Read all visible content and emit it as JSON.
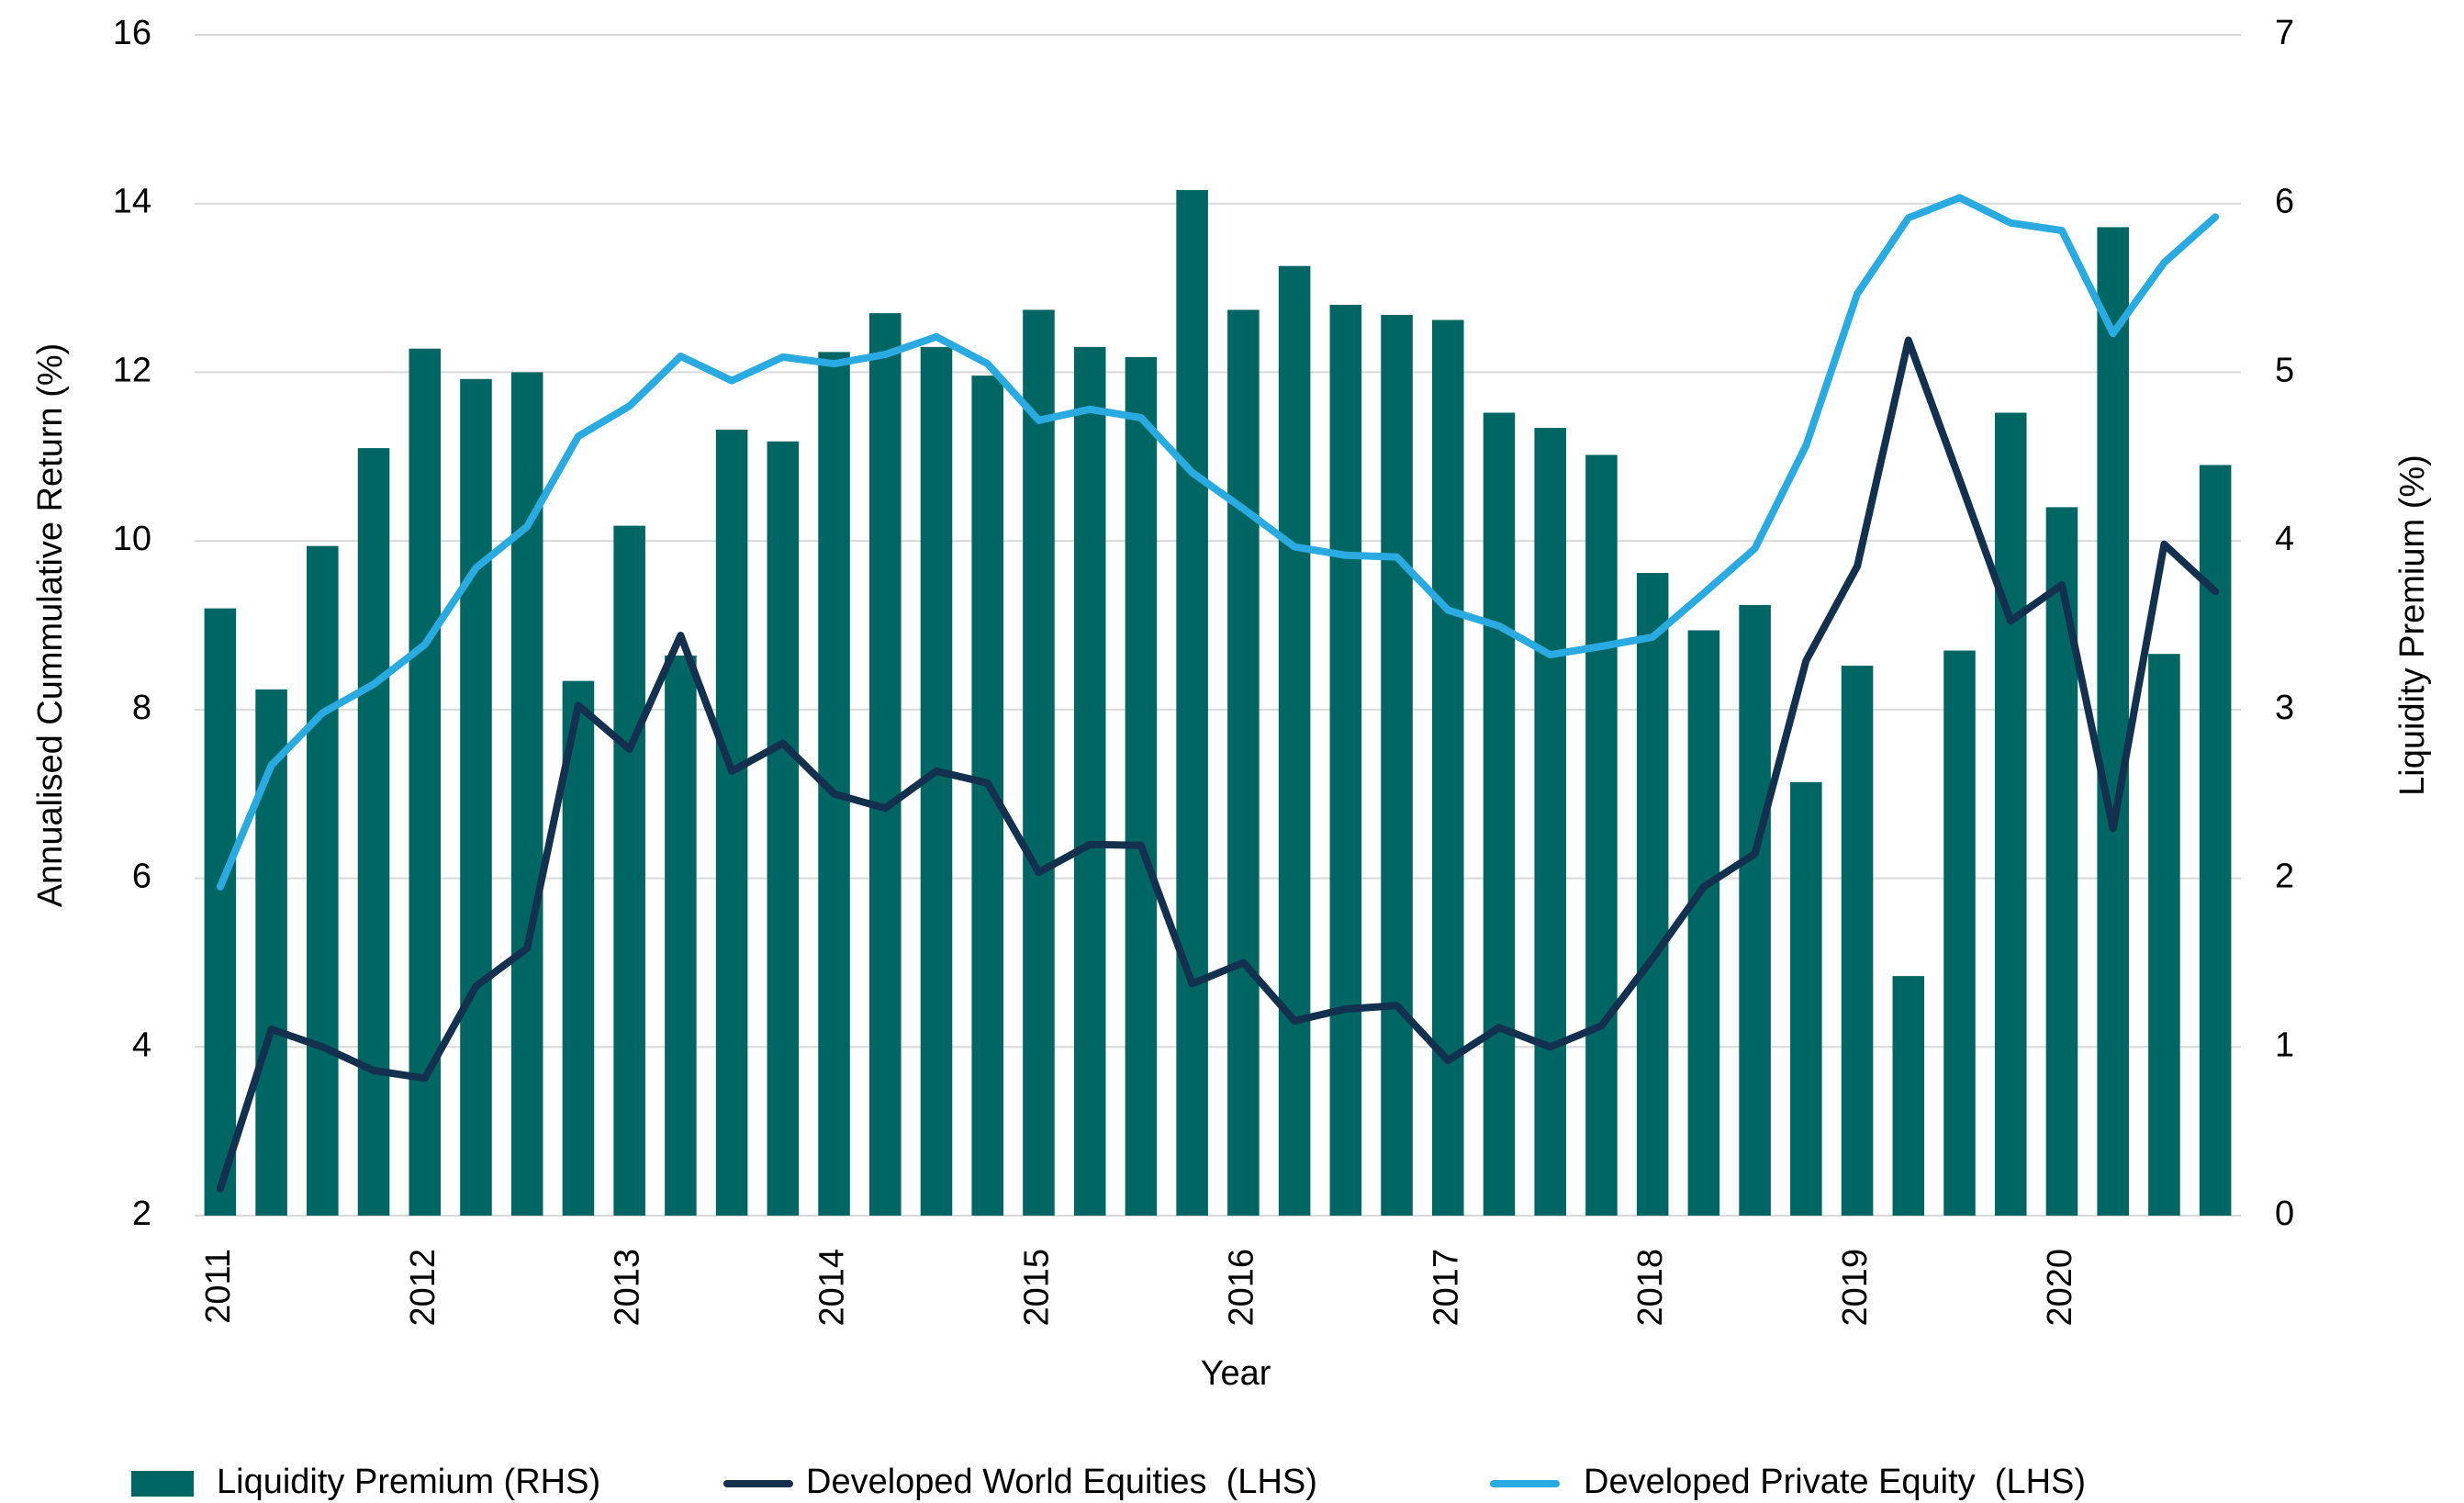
{
  "chart_data": {
    "type": "bar-line",
    "xlabel": "Year",
    "ylabel": "Annualised Cummulative Return (%)",
    "y2label": "Liquidity Premium (%)",
    "categories": [
      "2011",
      null,
      null,
      null,
      "2012",
      null,
      null,
      null,
      "2013",
      null,
      null,
      null,
      "2014",
      null,
      null,
      null,
      "2015",
      null,
      null,
      null,
      "2016",
      null,
      null,
      null,
      "2017",
      null,
      null,
      null,
      "2018",
      null,
      null,
      null,
      "2019",
      null,
      null,
      null,
      "2020",
      null,
      null,
      null
    ],
    "ylim": [
      2,
      16
    ],
    "yticks": [
      2,
      4,
      6,
      8,
      10,
      12,
      14,
      16
    ],
    "y2lim": [
      0,
      7
    ],
    "y2ticks": [
      0,
      1,
      2,
      3,
      4,
      5,
      6,
      7
    ],
    "grid": true,
    "legend": "bottom",
    "series": [
      {
        "name": "Liquidity Premium (RHS)",
        "type": "bar",
        "axis": "y2",
        "color": "#006663",
        "values": [
          3.6,
          3.12,
          3.97,
          4.55,
          5.14,
          4.96,
          5.0,
          3.17,
          4.09,
          3.32,
          4.66,
          4.59,
          5.12,
          5.35,
          5.15,
          4.98,
          5.37,
          5.15,
          5.09,
          6.08,
          5.37,
          5.63,
          5.4,
          5.34,
          5.31,
          4.76,
          4.67,
          4.51,
          3.81,
          3.47,
          3.62,
          2.57,
          3.26,
          1.42,
          3.35,
          4.76,
          4.2,
          5.86,
          3.33,
          4.45
        ]
      },
      {
        "name": "Developed World Equities  (LHS)",
        "type": "line",
        "color": "#13304f",
        "values": [
          2.32,
          4.21,
          4.0,
          3.72,
          3.63,
          4.72,
          5.17,
          8.05,
          7.53,
          8.88,
          7.27,
          7.6,
          7.0,
          6.83,
          7.27,
          7.13,
          6.07,
          6.4,
          6.39,
          4.75,
          5.0,
          4.31,
          4.45,
          4.49,
          3.84,
          4.23,
          4.0,
          4.25,
          5.05,
          5.9,
          6.29,
          8.58,
          9.7,
          12.38,
          10.73,
          9.05,
          9.48,
          6.59,
          9.96,
          9.4
        ]
      },
      {
        "name": "Developed Private Equity  (LHS)",
        "type": "line",
        "color": "#29abe2",
        "values": [
          5.9,
          7.34,
          7.96,
          8.3,
          8.77,
          9.68,
          10.17,
          11.24,
          11.6,
          12.19,
          11.9,
          12.18,
          12.1,
          12.21,
          12.42,
          12.1,
          11.43,
          11.56,
          11.46,
          10.81,
          10.38,
          9.93,
          9.83,
          9.81,
          9.18,
          8.99,
          8.65,
          8.75,
          8.86,
          9.38,
          9.91,
          11.13,
          12.93,
          13.83,
          14.07,
          13.77,
          13.68,
          12.46,
          13.3,
          13.84
        ]
      }
    ]
  }
}
